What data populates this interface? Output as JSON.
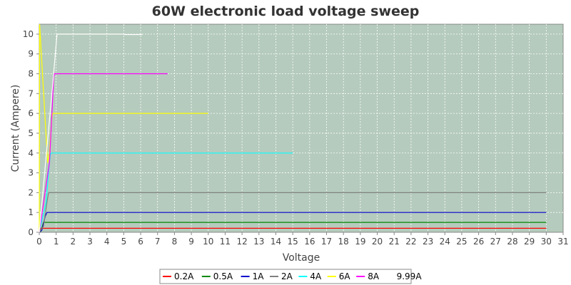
{
  "chart_data": {
    "type": "line",
    "title": "60W electronic load voltage sweep",
    "xlabel": "Voltage",
    "ylabel": "Current (Ampere)",
    "xlim": [
      0,
      31
    ],
    "ylim": [
      0,
      10.5
    ],
    "x_ticks": [
      0,
      1,
      2,
      3,
      4,
      5,
      6,
      7,
      8,
      9,
      10,
      11,
      12,
      13,
      14,
      15,
      16,
      17,
      18,
      19,
      20,
      21,
      22,
      23,
      24,
      25,
      26,
      27,
      28,
      29,
      30,
      31
    ],
    "y_ticks": [
      0,
      1,
      2,
      3,
      4,
      5,
      6,
      7,
      8,
      9,
      10
    ],
    "grid": true,
    "legend_position": "bottom",
    "colors": {
      "plot_background": "#b5cbbd",
      "grid": "#ffffff",
      "axis": "#888888"
    },
    "series": [
      {
        "name": "0.2A",
        "color": "#ff0000",
        "points": [
          [
            0,
            0
          ],
          [
            0.05,
            0.02
          ],
          [
            0.1,
            0.2
          ],
          [
            30,
            0.2
          ]
        ]
      },
      {
        "name": "0.5A",
        "color": "#008800",
        "points": [
          [
            0,
            0
          ],
          [
            0.1,
            0.05
          ],
          [
            0.25,
            0.5
          ],
          [
            30,
            0.5
          ]
        ]
      },
      {
        "name": "1A",
        "color": "#0000cc",
        "points": [
          [
            0,
            0
          ],
          [
            0.15,
            0.1
          ],
          [
            0.35,
            0.8
          ],
          [
            0.45,
            1.0
          ],
          [
            30,
            1.0
          ]
        ]
      },
      {
        "name": "2A",
        "color": "#808080",
        "points": [
          [
            0,
            0
          ],
          [
            0.25,
            0.3
          ],
          [
            0.45,
            1.5
          ],
          [
            0.55,
            2.0
          ],
          [
            30,
            2.0
          ]
        ]
      },
      {
        "name": "4A",
        "color": "#00ffff",
        "points": [
          [
            0,
            0
          ],
          [
            0.4,
            1.5
          ],
          [
            0.55,
            3.0
          ],
          [
            0.65,
            3.9
          ],
          [
            0.7,
            4.0
          ],
          [
            15,
            4.0
          ]
        ]
      },
      {
        "name": "6A",
        "color": "#ffff00",
        "points": [
          [
            0,
            0
          ],
          [
            0.02,
            10.5
          ],
          [
            0.5,
            3.5
          ],
          [
            0.6,
            4.0
          ],
          [
            0.75,
            5.8
          ],
          [
            0.8,
            6.0
          ],
          [
            10,
            6.0
          ]
        ]
      },
      {
        "name": "8A",
        "color": "#ff00ff",
        "points": [
          [
            0,
            0
          ],
          [
            0.6,
            3.5
          ],
          [
            0.75,
            6.0
          ],
          [
            0.85,
            7.8
          ],
          [
            0.9,
            8.0
          ],
          [
            7.6,
            8.0
          ]
        ]
      },
      {
        "name": "9.99A",
        "color": "#ffffff",
        "points": [
          [
            0,
            0
          ],
          [
            0.8,
            7.5
          ],
          [
            0.9,
            8.5
          ],
          [
            1.0,
            9.5
          ],
          [
            1.05,
            10.0
          ],
          [
            5,
            10.0
          ],
          [
            5.05,
            9.98
          ],
          [
            6.1,
            9.98
          ]
        ]
      }
    ]
  }
}
